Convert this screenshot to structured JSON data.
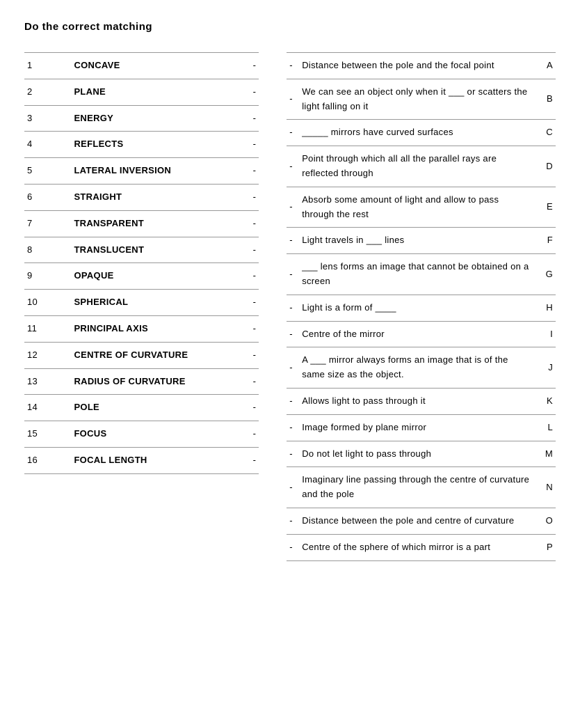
{
  "title": "Do the correct matching",
  "left_items": [
    {
      "num": "1",
      "term": "CONCAVE"
    },
    {
      "num": "2",
      "term": "PLANE"
    },
    {
      "num": "3",
      "term": "ENERGY"
    },
    {
      "num": "4",
      "term": "REFLECTS"
    },
    {
      "num": "5",
      "term": "LATERAL INVERSION"
    },
    {
      "num": "6",
      "term": "STRAIGHT"
    },
    {
      "num": "7",
      "term": "TRANSPARENT"
    },
    {
      "num": "8",
      "term": "TRANSLUCENT"
    },
    {
      "num": "9",
      "term": "OPAQUE"
    },
    {
      "num": "10",
      "term": "SPHERICAL"
    },
    {
      "num": "11",
      "term": "PRINCIPAL AXIS"
    },
    {
      "num": "12",
      "term": "CENTRE OF CURVATURE"
    },
    {
      "num": "13",
      "term": "RADIUS OF CURVATURE"
    },
    {
      "num": "14",
      "term": "POLE"
    },
    {
      "num": "15",
      "term": "FOCUS"
    },
    {
      "num": "16",
      "term": "FOCAL LENGTH"
    }
  ],
  "right_items": [
    {
      "desc": "Distance between the pole and the focal point",
      "letter": "A"
    },
    {
      "desc": "We can see an object only when it ___ or scatters the light falling on it",
      "letter": "B"
    },
    {
      "desc": "_____ mirrors have curved surfaces",
      "letter": "C"
    },
    {
      "desc": "Point through which all all the parallel rays are reflected through",
      "letter": "D"
    },
    {
      "desc": "Absorb some amount of light and allow to pass through the rest",
      "letter": "E"
    },
    {
      "desc": "Light travels in ___ lines",
      "letter": "F"
    },
    {
      "desc": "___ lens forms an image that cannot be obtained on a screen",
      "letter": "G"
    },
    {
      "desc": "Light is a form of ____",
      "letter": "H"
    },
    {
      "desc": "Centre of the mirror",
      "letter": "I"
    },
    {
      "desc": "A ___ mirror always forms an image that is of the same size as the object.",
      "letter": "J"
    },
    {
      "desc": "Allows light to pass through it",
      "letter": "K"
    },
    {
      "desc": "Image formed by plane mirror",
      "letter": "L"
    },
    {
      "desc": "Do not let light to pass through",
      "letter": "M"
    },
    {
      "desc": "Imaginary line passing through the centre of curvature and the pole",
      "letter": "N"
    },
    {
      "desc": "Distance between the pole and centre of curvature",
      "letter": "O"
    },
    {
      "desc": "Centre of the sphere of which mirror is a part",
      "letter": "P"
    }
  ],
  "dash": "-",
  "colors": {
    "border": "#999999",
    "text": "#000000",
    "background": "#ffffff"
  },
  "font": {
    "family": "Verdana",
    "title_size": 15,
    "body_size": 13
  }
}
